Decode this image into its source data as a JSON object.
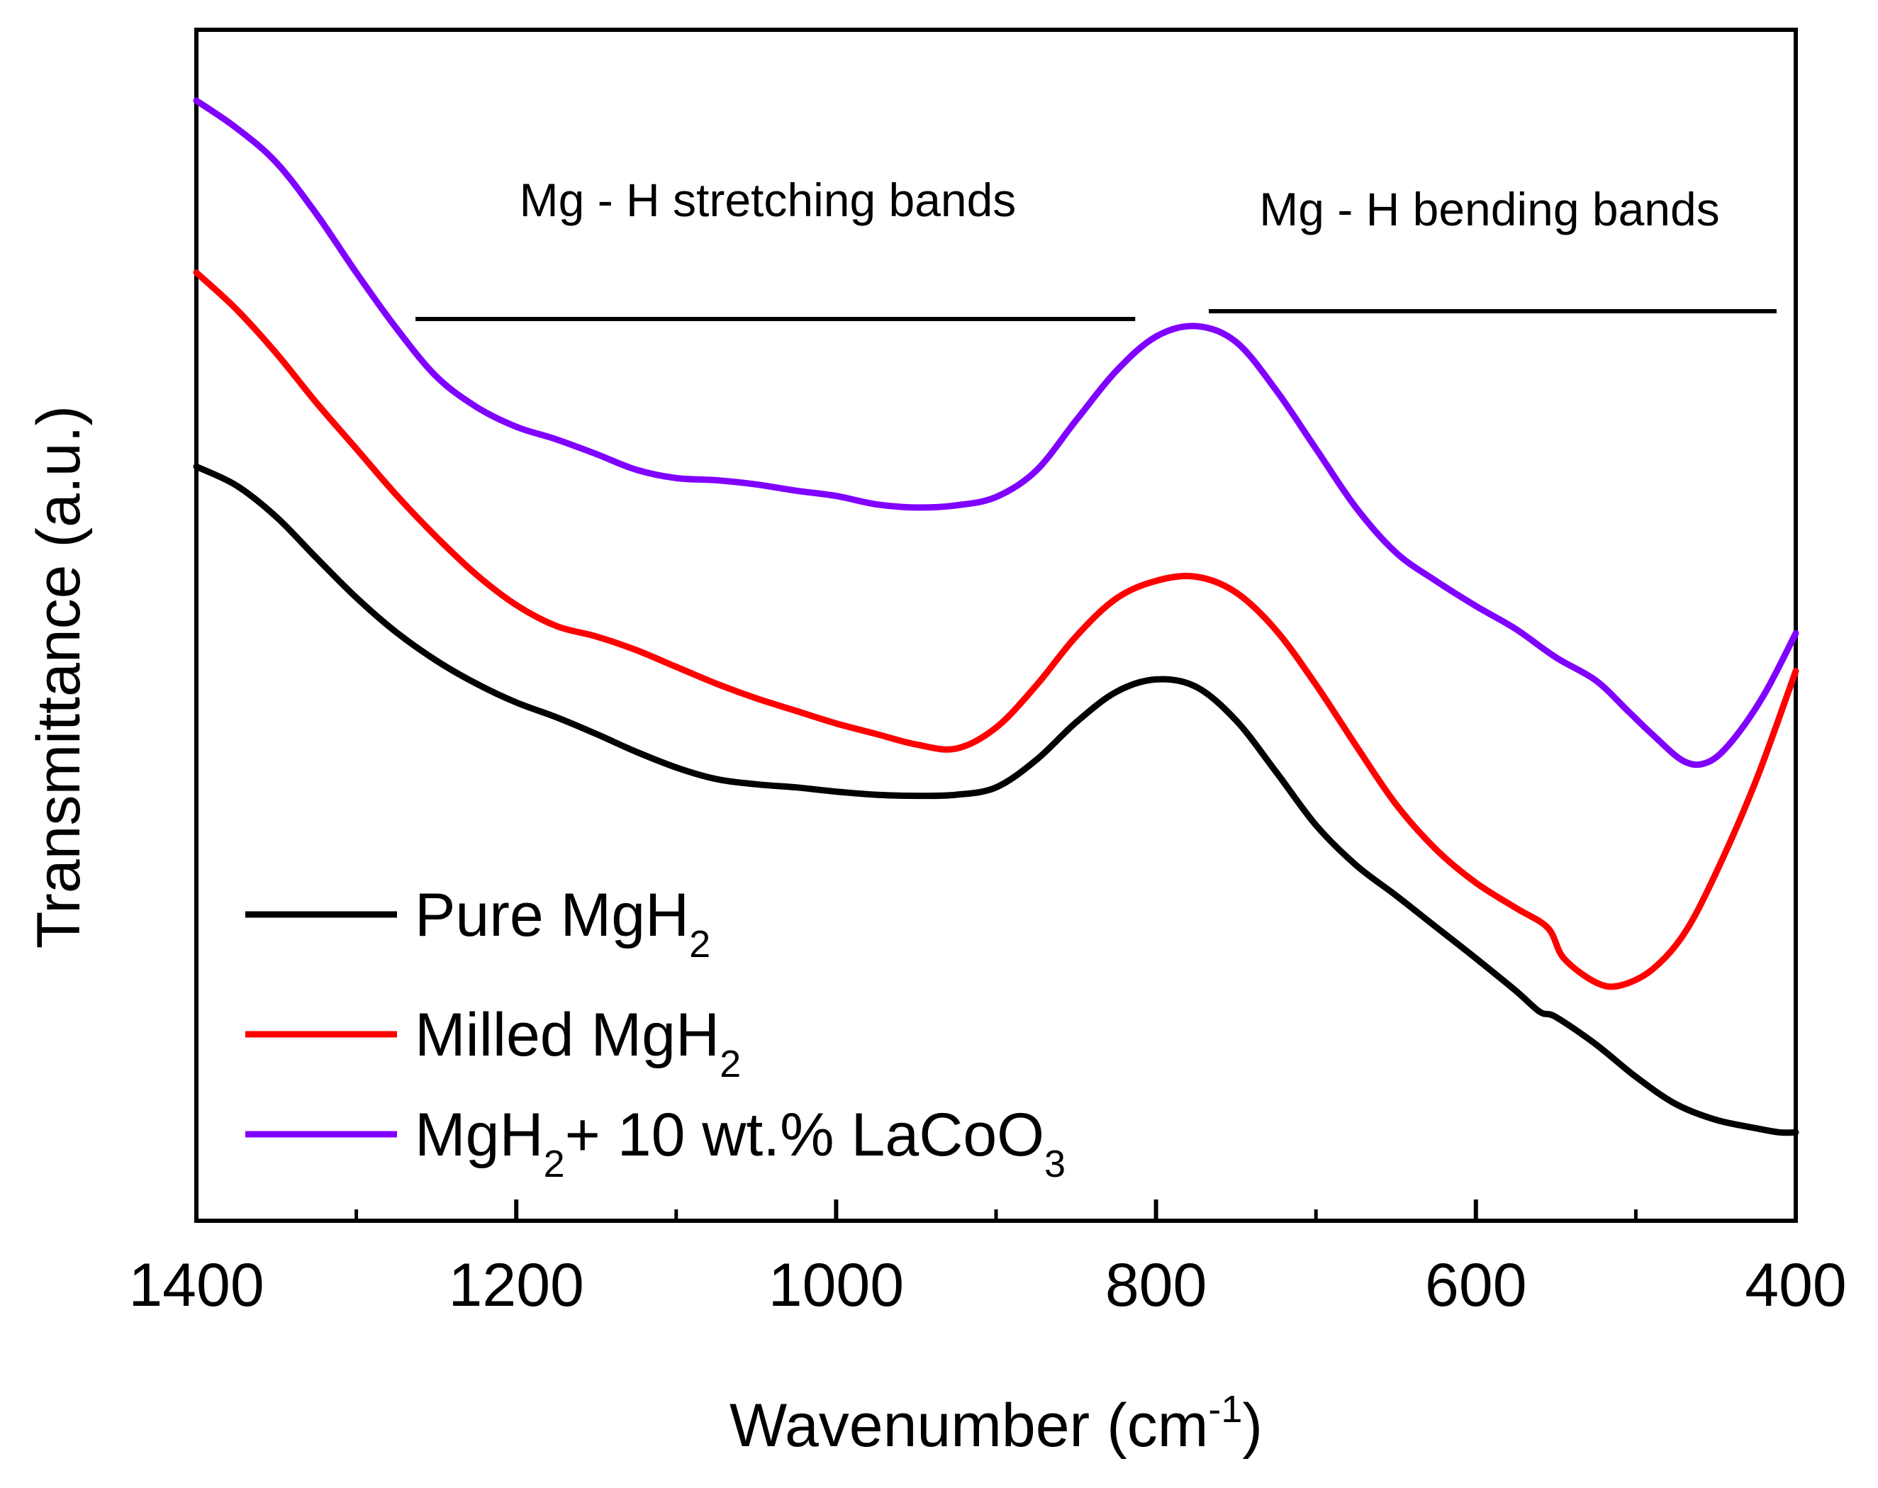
{
  "chart_data": {
    "type": "line",
    "title": "",
    "xlabel": "Wavenumber (cm",
    "xlabel_sup": "-1",
    "xlabel_end": ")",
    "ylabel": "Transmittance (a.u.)",
    "xlim": [
      1400,
      400
    ],
    "x_reversed": true,
    "ylim": [
      0,
      100
    ],
    "y_ticks_shown": false,
    "x_ticks": [
      "1400",
      "1200",
      "1000",
      "800",
      "600",
      "400"
    ],
    "x_tick_values": [
      1400,
      1200,
      1000,
      800,
      600,
      400
    ],
    "x_minor_tick_values": [
      1300,
      1100,
      900,
      700,
      500
    ],
    "grid": false,
    "legend_position": "bottom-left",
    "annotations": {
      "stretching": {
        "label": "Mg - H stretching bands",
        "x_range": [
          1263,
          813
        ]
      },
      "bending": {
        "label": "Mg - H bending bands",
        "x_range": [
          767,
          412
        ]
      }
    },
    "series": [
      {
        "name": "Pure MgH2",
        "legend_parts": [
          [
            "Pure MgH",
            ""
          ],
          [
            "2",
            "sub"
          ]
        ],
        "color": "#000000",
        "x": [
          1400,
          1375,
          1350,
          1325,
          1300,
          1275,
          1250,
          1225,
          1200,
          1175,
          1150,
          1125,
          1100,
          1075,
          1050,
          1025,
          1000,
          975,
          950,
          925,
          900,
          875,
          850,
          825,
          800,
          775,
          750,
          725,
          700,
          675,
          650,
          625,
          600,
          575,
          560,
          550,
          525,
          500,
          475,
          450,
          425,
          410,
          400
        ],
        "y": [
          65.1,
          63.3,
          60.3,
          56.4,
          52.6,
          49.3,
          46.6,
          44.4,
          42.6,
          41.2,
          39.6,
          37.9,
          36.4,
          35.3,
          34.8,
          34.5,
          34.1,
          33.8,
          33.7,
          33.8,
          34.5,
          37.1,
          40.7,
          43.6,
          44.8,
          44.1,
          40.9,
          36.0,
          30.9,
          27.1,
          24.2,
          21.2,
          18.2,
          15.1,
          13.1,
          12.6,
          10.0,
          6.9,
          4.3,
          2.8,
          2.0,
          1.6,
          1.6
        ]
      },
      {
        "name": "Milled MgH2",
        "legend_parts": [
          [
            "Milled MgH",
            ""
          ],
          [
            "2",
            "sub"
          ]
        ],
        "color": "#ff0000",
        "x": [
          1400,
          1375,
          1350,
          1325,
          1300,
          1275,
          1250,
          1225,
          1200,
          1175,
          1150,
          1125,
          1100,
          1075,
          1050,
          1025,
          1000,
          975,
          950,
          925,
          900,
          875,
          850,
          825,
          800,
          775,
          750,
          725,
          700,
          675,
          650,
          625,
          600,
          575,
          555,
          545,
          525,
          510,
          490,
          470,
          450,
          425,
          400
        ],
        "y": [
          83.6,
          80.1,
          75.9,
          71.2,
          66.8,
          62.4,
          58.4,
          54.8,
          51.9,
          49.9,
          48.9,
          47.6,
          46.0,
          44.4,
          43.0,
          41.8,
          40.6,
          39.6,
          38.6,
          38.2,
          40.2,
          44.2,
          48.9,
          52.5,
          54.2,
          54.6,
          53.1,
          49.5,
          44.3,
          38.5,
          32.9,
          28.6,
          25.4,
          23.0,
          21.1,
          18.2,
          15.9,
          15.6,
          17.1,
          20.5,
          26.3,
          35.1,
          45.6
        ]
      },
      {
        "name": "MgH2+ 10 wt.% LaCoO3",
        "legend_parts": [
          [
            "MgH",
            ""
          ],
          [
            "2",
            "sub"
          ],
          [
            "+ 10 wt.% LaCoO",
            ""
          ],
          [
            "3",
            "sub"
          ]
        ],
        "color": "#8000ff",
        "x": [
          1400,
          1375,
          1350,
          1325,
          1300,
          1275,
          1250,
          1225,
          1200,
          1175,
          1150,
          1125,
          1100,
          1075,
          1050,
          1025,
          1000,
          975,
          950,
          925,
          900,
          875,
          850,
          825,
          800,
          775,
          750,
          725,
          700,
          675,
          650,
          625,
          600,
          575,
          550,
          525,
          505,
          490,
          470,
          455,
          440,
          420,
          400
        ],
        "y": [
          100.0,
          97.4,
          94.1,
          89.2,
          83.6,
          78.3,
          73.7,
          70.8,
          68.9,
          67.7,
          66.3,
          64.8,
          64.0,
          63.8,
          63.4,
          62.8,
          62.3,
          61.5,
          61.2,
          61.4,
          62.2,
          64.7,
          69.5,
          74.2,
          77.5,
          78.5,
          77.0,
          72.4,
          66.8,
          61.2,
          56.9,
          54.2,
          51.8,
          49.6,
          46.9,
          44.7,
          41.8,
          39.6,
          37.0,
          36.9,
          38.9,
          43.3,
          49.2
        ]
      }
    ]
  }
}
